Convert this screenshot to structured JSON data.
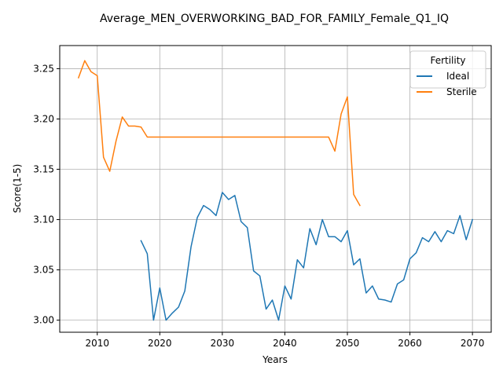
{
  "chart_data": {
    "type": "line",
    "title": "Average_MEN_OVERWORKING_BAD_FOR_FAMILY_Female_Q1_IQ",
    "xlabel": "Years",
    "ylabel": "Score(1-5)",
    "xlim": [
      2004,
      2073
    ],
    "ylim": [
      2.988,
      3.273
    ],
    "xticks": [
      2010,
      2020,
      2030,
      2040,
      2050,
      2060,
      2070
    ],
    "yticks": [
      3.0,
      3.05,
      3.1,
      3.15,
      3.2,
      3.25
    ],
    "ytick_labels": [
      "3.00",
      "3.05",
      "3.10",
      "3.15",
      "3.20",
      "3.25"
    ],
    "grid": true,
    "legend": {
      "title": "Fertility",
      "position": "top-right"
    },
    "series": [
      {
        "name": "Ideal",
        "color": "#1f77b4",
        "x": [
          2017,
          2018,
          2019,
          2020,
          2021,
          2022,
          2023,
          2024,
          2025,
          2026,
          2027,
          2028,
          2029,
          2030,
          2031,
          2032,
          2033,
          2034,
          2035,
          2036,
          2037,
          2038,
          2039,
          2040,
          2041,
          2042,
          2043,
          2044,
          2045,
          2046,
          2047,
          2048,
          2049,
          2050,
          2051,
          2052,
          2053,
          2054,
          2055,
          2056,
          2057,
          2058,
          2059,
          2060,
          2061,
          2062,
          2063,
          2064,
          2065,
          2066,
          2067,
          2068,
          2069,
          2070
        ],
        "values": [
          3.079,
          3.066,
          3.0,
          3.032,
          3.0,
          3.007,
          3.013,
          3.029,
          3.073,
          3.102,
          3.114,
          3.11,
          3.104,
          3.127,
          3.12,
          3.124,
          3.098,
          3.092,
          3.049,
          3.044,
          3.011,
          3.02,
          3.0,
          3.034,
          3.021,
          3.06,
          3.052,
          3.091,
          3.075,
          3.1,
          3.083,
          3.083,
          3.078,
          3.089,
          3.055,
          3.061,
          3.027,
          3.034,
          3.021,
          3.02,
          3.018,
          3.036,
          3.04,
          3.061,
          3.067,
          3.082,
          3.078,
          3.088,
          3.078,
          3.089,
          3.086,
          3.104,
          3.08,
          3.1
        ]
      },
      {
        "name": "Sterile",
        "color": "#ff7f0e",
        "x": [
          2007,
          2008,
          2009,
          2010,
          2011,
          2012,
          2013,
          2014,
          2015,
          2016,
          2017,
          2018,
          2019,
          2020,
          2021,
          2022,
          2023,
          2024,
          2025,
          2026,
          2027,
          2028,
          2029,
          2030,
          2031,
          2032,
          2033,
          2034,
          2035,
          2036,
          2037,
          2038,
          2039,
          2040,
          2041,
          2042,
          2043,
          2044,
          2045,
          2046,
          2047,
          2048,
          2049,
          2050,
          2051,
          2052
        ],
        "values": [
          3.241,
          3.258,
          3.247,
          3.243,
          3.162,
          3.148,
          3.178,
          3.202,
          3.193,
          3.193,
          3.192,
          3.182,
          3.182,
          3.182,
          3.182,
          3.182,
          3.182,
          3.182,
          3.182,
          3.182,
          3.182,
          3.182,
          3.182,
          3.182,
          3.182,
          3.182,
          3.182,
          3.182,
          3.182,
          3.182,
          3.182,
          3.182,
          3.182,
          3.182,
          3.182,
          3.182,
          3.182,
          3.182,
          3.182,
          3.182,
          3.182,
          3.168,
          3.205,
          3.222,
          3.125,
          3.114
        ]
      }
    ]
  }
}
